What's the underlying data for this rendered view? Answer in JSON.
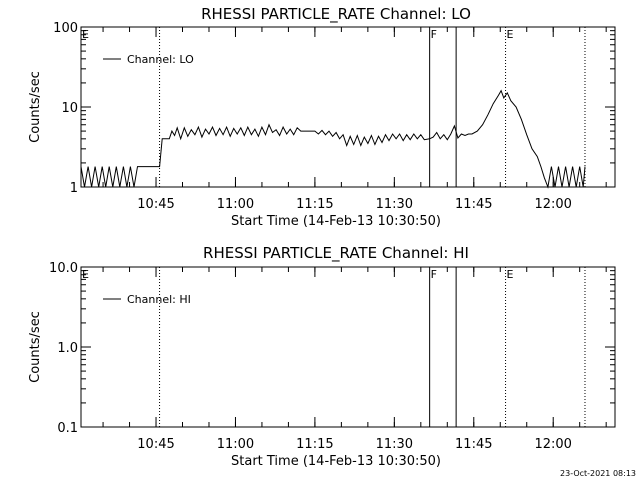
{
  "footer_timestamp": "23-Oct-2021 08:13",
  "chart_data": [
    {
      "type": "line",
      "title": "RHESSI PARTICLE_RATE Channel: LO",
      "xlabel": "Start Time (14-Feb-13 10:30:50)",
      "ylabel": "Counts/sec",
      "yscale": "log",
      "ylim": [
        1,
        100
      ],
      "yticks": [
        1,
        10,
        100
      ],
      "ytick_labels": [
        "1",
        "10",
        "100"
      ],
      "xlim": [
        "10:30:50",
        "12:11:40"
      ],
      "xticks": [
        "10:45",
        "11:00",
        "11:15",
        "11:30",
        "11:45",
        "12:00"
      ],
      "xtick_labels": [
        "10:45",
        "11:00",
        "11:15",
        "11:30",
        "11:45",
        "12:00"
      ],
      "legend": "upper-left",
      "vlines": [
        {
          "label": "E",
          "time": "10:30:50",
          "style": "dotted"
        },
        {
          "label": "",
          "time": "10:45:40",
          "style": "dotted"
        },
        {
          "label": "F",
          "time": "11:36:40",
          "style": "solid"
        },
        {
          "label": "",
          "time": "11:41:40",
          "style": "solid"
        },
        {
          "label": "E",
          "time": "11:51:00",
          "style": "dotted"
        },
        {
          "label": "",
          "time": "12:06:00",
          "style": "dotted"
        }
      ],
      "series": [
        {
          "name": "Channel: LO",
          "points": [
            [
              "10:30:50",
              1.8
            ],
            [
              "10:31:30",
              1.0
            ],
            [
              "10:32:10",
              1.8
            ],
            [
              "10:32:50",
              1.0
            ],
            [
              "10:33:30",
              1.8
            ],
            [
              "10:34:10",
              1.0
            ],
            [
              "10:34:50",
              1.8
            ],
            [
              "10:35:30",
              1.0
            ],
            [
              "10:36:10",
              1.8
            ],
            [
              "10:36:50",
              1.0
            ],
            [
              "10:37:30",
              1.8
            ],
            [
              "10:38:10",
              1.0
            ],
            [
              "10:38:50",
              1.8
            ],
            [
              "10:39:30",
              1.0
            ],
            [
              "10:40:10",
              1.8
            ],
            [
              "10:40:50",
              1.0
            ],
            [
              "10:41:30",
              1.8
            ],
            [
              "10:42:10",
              1.8
            ],
            [
              "10:44:00",
              1.8
            ],
            [
              "10:45:40",
              1.8
            ],
            [
              "10:46:10",
              4.0
            ],
            [
              "10:47:30",
              4.0
            ],
            [
              "10:48:00",
              5.0
            ],
            [
              "10:48:30",
              4.4
            ],
            [
              "10:49:00",
              5.5
            ],
            [
              "10:49:40",
              4.0
            ],
            [
              "10:50:20",
              5.5
            ],
            [
              "10:51:00",
              4.3
            ],
            [
              "10:51:40",
              5.2
            ],
            [
              "10:52:20",
              4.5
            ],
            [
              "10:53:00",
              5.6
            ],
            [
              "10:53:40",
              4.2
            ],
            [
              "10:54:20",
              5.3
            ],
            [
              "10:55:00",
              4.6
            ],
            [
              "10:55:40",
              5.6
            ],
            [
              "10:56:20",
              4.4
            ],
            [
              "10:57:00",
              5.4
            ],
            [
              "10:57:40",
              4.5
            ],
            [
              "10:58:20",
              5.6
            ],
            [
              "10:59:00",
              4.3
            ],
            [
              "10:59:40",
              5.4
            ],
            [
              "11:00:20",
              4.6
            ],
            [
              "11:01:00",
              5.5
            ],
            [
              "11:01:40",
              4.4
            ],
            [
              "11:02:20",
              5.6
            ],
            [
              "11:03:00",
              4.5
            ],
            [
              "11:03:40",
              5.3
            ],
            [
              "11:04:20",
              4.3
            ],
            [
              "11:05:00",
              5.6
            ],
            [
              "11:05:40",
              4.5
            ],
            [
              "11:06:20",
              6.0
            ],
            [
              "11:07:00",
              4.8
            ],
            [
              "11:07:40",
              5.2
            ],
            [
              "11:08:20",
              4.4
            ],
            [
              "11:09:00",
              5.6
            ],
            [
              "11:09:40",
              4.6
            ],
            [
              "11:10:20",
              5.3
            ],
            [
              "11:11:00",
              4.5
            ],
            [
              "11:11:40",
              5.5
            ],
            [
              "11:12:20",
              5.0
            ],
            [
              "11:13:20",
              5.0
            ],
            [
              "11:14:20",
              5.0
            ],
            [
              "11:15:00",
              5.0
            ],
            [
              "11:15:40",
              4.6
            ],
            [
              "11:16:20",
              5.1
            ],
            [
              "11:17:00",
              4.5
            ],
            [
              "11:17:40",
              5.0
            ],
            [
              "11:18:20",
              4.3
            ],
            [
              "11:19:00",
              4.8
            ],
            [
              "11:19:40",
              4.0
            ],
            [
              "11:20:20",
              4.5
            ],
            [
              "11:21:00",
              3.3
            ],
            [
              "11:21:40",
              4.3
            ],
            [
              "11:22:20",
              3.4
            ],
            [
              "11:23:00",
              4.4
            ],
            [
              "11:23:40",
              3.3
            ],
            [
              "11:24:20",
              4.2
            ],
            [
              "11:25:00",
              3.5
            ],
            [
              "11:25:40",
              4.4
            ],
            [
              "11:26:20",
              3.4
            ],
            [
              "11:27:00",
              4.3
            ],
            [
              "11:27:40",
              3.6
            ],
            [
              "11:28:20",
              4.5
            ],
            [
              "11:29:00",
              3.8
            ],
            [
              "11:29:40",
              4.6
            ],
            [
              "11:30:20",
              4.0
            ],
            [
              "11:31:00",
              4.6
            ],
            [
              "11:31:40",
              3.8
            ],
            [
              "11:32:20",
              4.5
            ],
            [
              "11:33:00",
              3.9
            ],
            [
              "11:33:40",
              4.6
            ],
            [
              "11:34:20",
              4.0
            ],
            [
              "11:35:00",
              4.5
            ],
            [
              "11:35:40",
              3.9
            ],
            [
              "11:36:40",
              4.0
            ],
            [
              "11:37:20",
              4.2
            ],
            [
              "11:38:00",
              4.8
            ],
            [
              "11:38:40",
              4.0
            ],
            [
              "11:39:20",
              4.5
            ],
            [
              "11:40:00",
              3.9
            ],
            [
              "11:40:40",
              4.6
            ],
            [
              "11:41:20",
              5.8
            ],
            [
              "11:42:00",
              4.1
            ],
            [
              "11:42:40",
              4.6
            ],
            [
              "11:43:20",
              4.4
            ],
            [
              "11:44:00",
              4.6
            ],
            [
              "11:44:40",
              4.6
            ],
            [
              "11:45:40",
              5.0
            ],
            [
              "11:46:40",
              6.0
            ],
            [
              "11:47:40",
              8.0
            ],
            [
              "11:48:40",
              11.0
            ],
            [
              "11:49:40",
              14.0
            ],
            [
              "11:50:10",
              16.0
            ],
            [
              "11:50:40",
              13.0
            ],
            [
              "11:51:20",
              15.0
            ],
            [
              "11:52:00",
              12.0
            ],
            [
              "11:53:00",
              10.0
            ],
            [
              "11:54:00",
              7.0
            ],
            [
              "11:55:00",
              4.5
            ],
            [
              "11:56:00",
              3.0
            ],
            [
              "11:57:00",
              2.4
            ],
            [
              "11:57:40",
              1.8
            ],
            [
              "11:58:20",
              1.3
            ],
            [
              "11:59:00",
              1.0
            ],
            [
              "11:59:40",
              1.8
            ],
            [
              "12:00:20",
              1.0
            ],
            [
              "12:01:00",
              1.8
            ],
            [
              "12:01:40",
              1.0
            ],
            [
              "12:02:20",
              1.8
            ],
            [
              "12:03:00",
              1.0
            ],
            [
              "12:03:40",
              1.8
            ],
            [
              "12:04:20",
              1.0
            ],
            [
              "12:05:00",
              1.8
            ],
            [
              "12:05:40",
              1.0
            ],
            [
              "12:06:00",
              1.8
            ]
          ]
        }
      ]
    },
    {
      "type": "line",
      "title": "RHESSI PARTICLE_RATE Channel: HI",
      "xlabel": "Start Time (14-Feb-13 10:30:50)",
      "ylabel": "Counts/sec",
      "yscale": "log",
      "ylim": [
        0.1,
        10
      ],
      "yticks": [
        0.1,
        1,
        10
      ],
      "ytick_labels": [
        "0.1",
        "1.0",
        "10.0"
      ],
      "xlim": [
        "10:30:50",
        "12:11:40"
      ],
      "xticks": [
        "10:45",
        "11:00",
        "11:15",
        "11:30",
        "11:45",
        "12:00"
      ],
      "xtick_labels": [
        "10:45",
        "11:00",
        "11:15",
        "11:30",
        "11:45",
        "12:00"
      ],
      "legend": "upper-left",
      "vlines": [
        {
          "label": "E",
          "time": "10:30:50",
          "style": "dotted"
        },
        {
          "label": "",
          "time": "10:45:40",
          "style": "dotted"
        },
        {
          "label": "F",
          "time": "11:36:40",
          "style": "solid"
        },
        {
          "label": "",
          "time": "11:41:40",
          "style": "solid"
        },
        {
          "label": "E",
          "time": "11:51:00",
          "style": "dotted"
        },
        {
          "label": "",
          "time": "12:06:00",
          "style": "dotted"
        }
      ],
      "series": [
        {
          "name": "Channel: HI",
          "points": []
        }
      ]
    }
  ]
}
